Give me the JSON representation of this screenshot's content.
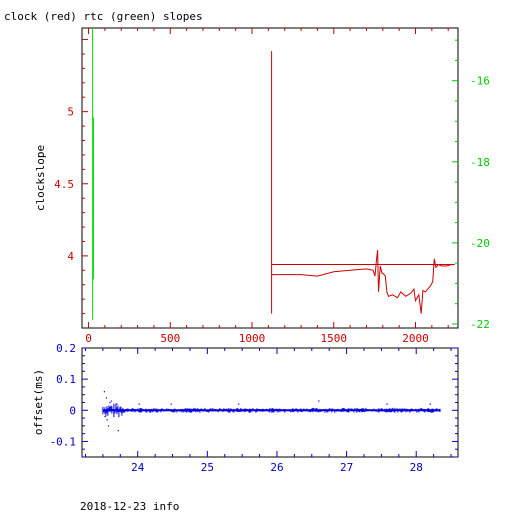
{
  "chart_data": [
    {
      "type": "line",
      "title": "clock (red) rtc (green) slopes",
      "ylabel": "clockslope",
      "xlabel": "",
      "x_ticks": [
        "0",
        "500",
        "1000",
        "1500",
        "2000"
      ],
      "xlim": [
        -40,
        2260
      ],
      "y_left_ticks": [
        "4",
        "4.5",
        "5"
      ],
      "ylim_left": [
        3.5,
        5.58
      ],
      "y_right_ticks": [
        "-22",
        "-20",
        "-18",
        "-16"
      ],
      "ylim_right": [
        -22.1,
        -14.7
      ],
      "series": [
        {
          "name": "clock",
          "color": "#cc0000",
          "axis": "left",
          "segments": [
            [
              [
                1120,
                5.42
              ],
              [
                1120,
                3.6
              ]
            ],
            [
              [
                1120,
                3.87
              ],
              [
                1200,
                3.87
              ],
              [
                1300,
                3.87
              ],
              [
                1400,
                3.86
              ],
              [
                1500,
                3.89
              ],
              [
                1600,
                3.9
              ],
              [
                1700,
                3.91
              ],
              [
                1740,
                3.9
              ],
              [
                1752,
                3.86
              ],
              [
                1760,
                3.96
              ],
              [
                1768,
                4.04
              ],
              [
                1774,
                3.75
              ],
              [
                1785,
                3.93
              ],
              [
                1795,
                3.88
              ],
              [
                1800,
                3.88
              ],
              [
                1815,
                3.86
              ],
              [
                1825,
                3.75
              ],
              [
                1835,
                3.72
              ],
              [
                1860,
                3.73
              ],
              [
                1890,
                3.71
              ],
              [
                1910,
                3.75
              ],
              [
                1940,
                3.72
              ],
              [
                1970,
                3.74
              ],
              [
                1990,
                3.77
              ],
              [
                2000,
                3.69
              ],
              [
                2020,
                3.73
              ],
              [
                2035,
                3.6
              ],
              [
                2045,
                3.76
              ],
              [
                2060,
                3.75
              ],
              [
                2075,
                3.77
              ],
              [
                2090,
                3.79
              ],
              [
                2105,
                3.82
              ],
              [
                2115,
                3.98
              ],
              [
                2125,
                3.92
              ],
              [
                2140,
                3.94
              ],
              [
                2160,
                3.93
              ],
              [
                2190,
                3.93
              ],
              [
                2220,
                3.94
              ],
              [
                2240,
                3.94
              ]
            ],
            [
              [
                1120,
                3.94
              ],
              [
                1500,
                3.94
              ],
              [
                2000,
                3.94
              ],
              [
                2240,
                3.94
              ]
            ]
          ]
        },
        {
          "name": "rtc",
          "color": "#00dd00",
          "axis": "right",
          "segments": [
            [
              [
                25,
                -14.7
              ],
              [
                25,
                -21.9
              ]
            ],
            [
              [
                30,
                -16.9
              ],
              [
                30,
                -20.9
              ]
            ]
          ]
        }
      ],
      "grid": false
    },
    {
      "type": "scatter",
      "ylabel": "offset(ms)",
      "xlabel": "2018-12-23 info",
      "x_ticks": [
        "24",
        "25",
        "26",
        "27",
        "28"
      ],
      "xlim": [
        23.2,
        28.6
      ],
      "y_ticks": [
        "-0.1",
        "0",
        "0.1",
        "0.2"
      ],
      "ylim": [
        -0.15,
        0.2
      ],
      "color": "#0000dd",
      "x_start": 23.5,
      "x_end": 28.35,
      "baseline": 0.0,
      "outliers": [
        [
          23.52,
          0.06
        ],
        [
          23.55,
          0.04
        ],
        [
          23.56,
          -0.03
        ],
        [
          23.58,
          -0.05
        ],
        [
          23.6,
          0.025
        ],
        [
          23.62,
          0.03
        ],
        [
          23.53,
          -0.02
        ],
        [
          23.72,
          -0.065
        ],
        [
          23.7,
          0.02
        ],
        [
          24.02,
          0.02
        ],
        [
          24.48,
          0.02
        ],
        [
          25.45,
          0.02
        ],
        [
          26.6,
          0.03
        ],
        [
          27.58,
          0.02
        ],
        [
          28.2,
          0.02
        ]
      ]
    }
  ],
  "footer": "2018-12-23 info"
}
